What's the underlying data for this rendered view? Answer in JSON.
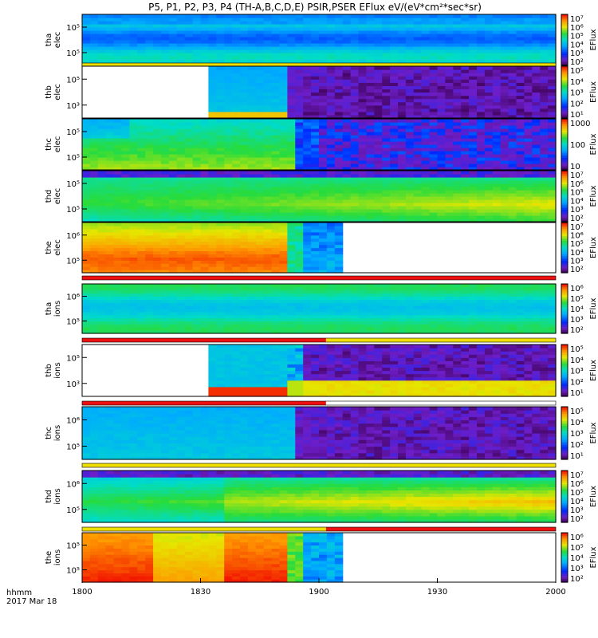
{
  "chart_data": {
    "type": "heatmap",
    "title": "P5, P1, P2, P3, P4 (TH-A,B,C,D,E) PSIR,PSER EFlux eV/(eV*cm²*sec*sr)",
    "x_ticks": [
      "1800",
      "1830",
      "1900",
      "1930",
      "2000"
    ],
    "x_label_line1": "hhmm",
    "x_label_line2": "2017 Mar 18",
    "colorbar_label": "EFlux",
    "panels": [
      {
        "probe": "tha",
        "species": "elec",
        "yticks": [
          "10⁵",
          "10⁵"
        ],
        "cb_ticks": [
          "10⁷",
          "10⁶",
          "10⁵",
          "10⁴",
          "10³",
          "10²"
        ],
        "mode_bar": "yellow",
        "pattern": "tha_elec"
      },
      {
        "probe": "thb",
        "species": "elec",
        "yticks": [
          "10⁵",
          "10³"
        ],
        "cb_ticks": [
          "10⁵",
          "10⁴",
          "10³",
          "10²",
          "10¹"
        ],
        "mode_bar": "none",
        "pattern": "thb_elec"
      },
      {
        "probe": "thc",
        "species": "elec",
        "yticks": [
          "10⁵",
          "10⁵"
        ],
        "cb_ticks": [
          "1000",
          "100",
          "10"
        ],
        "mode_bar": "none",
        "pattern": "thc_elec"
      },
      {
        "probe": "thd",
        "species": "elec",
        "yticks": [
          "10⁵",
          "10⁵"
        ],
        "cb_ticks": [
          "10⁷",
          "10⁶",
          "10⁵",
          "10⁴",
          "10³",
          "10²"
        ],
        "mode_bar": "none",
        "pattern": "thd_elec"
      },
      {
        "probe": "the",
        "species": "elec",
        "yticks": [
          "10⁶",
          "10⁵"
        ],
        "cb_ticks": [
          "10⁷",
          "10⁶",
          "10⁵",
          "10⁴",
          "10³",
          "10²"
        ],
        "mode_bar": "red",
        "pattern": "the_elec"
      },
      {
        "probe": "tha",
        "species": "ions",
        "yticks": [
          "10⁶",
          "10⁵"
        ],
        "cb_ticks": [
          "10⁶",
          "10⁵",
          "10⁴",
          "10³",
          "10²"
        ],
        "mode_bar": "red_yellow",
        "pattern": "tha_ions"
      },
      {
        "probe": "thb",
        "species": "ions",
        "yticks": [
          "10⁵",
          "10³"
        ],
        "cb_ticks": [
          "10⁵",
          "10⁴",
          "10³",
          "10²",
          "10¹"
        ],
        "mode_bar": "red_white",
        "pattern": "thb_ions"
      },
      {
        "probe": "thc",
        "species": "ions",
        "yticks": [
          "10⁶",
          "10⁵"
        ],
        "cb_ticks": [
          "10⁵",
          "10⁴",
          "10³",
          "10²",
          "10¹"
        ],
        "mode_bar": "yellow",
        "pattern": "thc_ions"
      },
      {
        "probe": "thd",
        "species": "ions",
        "yticks": [
          "10⁶",
          "10⁵"
        ],
        "cb_ticks": [
          "10⁷",
          "10⁶",
          "10⁵",
          "10⁴",
          "10³",
          "10²"
        ],
        "mode_bar": "yellow_red",
        "pattern": "thd_ions"
      },
      {
        "probe": "the",
        "species": "ions",
        "yticks": [
          "10⁵",
          "10⁵"
        ],
        "cb_ticks": [
          "10⁶",
          "10⁵",
          "10⁴",
          "10³",
          "10²"
        ],
        "mode_bar": "none",
        "pattern": "the_ions"
      }
    ]
  }
}
